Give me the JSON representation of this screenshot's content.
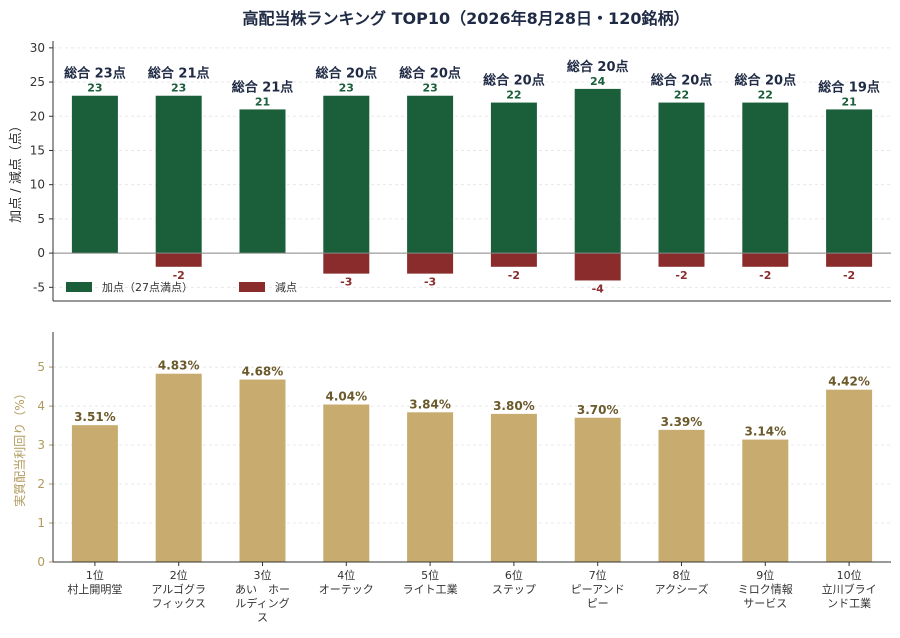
{
  "chart_data": [
    {
      "type": "bar",
      "title": "高配当株ランキング TOP10（2026年8月28日・120銘柄）",
      "ylabel": "加点 / 減点（点）",
      "ylim": [
        -7,
        31
      ],
      "yticks": [
        -5,
        0,
        5,
        10,
        15,
        20,
        25,
        30
      ],
      "grid": true,
      "legend_position": "bottom-left",
      "categories": [
        "1位\n村上開明堂",
        "2位\nアルゴグラ\nフィックス",
        "3位\nあい　ホー\nルディング\nス",
        "4位\nオーテック",
        "5位\nライト工業",
        "6位\nステップ",
        "7位\nピーアンド\nピー",
        "8位\nアクシーズ",
        "9位\nミロク情報\nサービス",
        "10位\n立川ブライ\nンド工業"
      ],
      "series": [
        {
          "name": "加点（27点満点）",
          "color": "#1a5e3a",
          "values": [
            23,
            23,
            21,
            23,
            23,
            22,
            24,
            22,
            22,
            21
          ]
        },
        {
          "name": "減点",
          "color": "#8b2c2c",
          "values": [
            0,
            -2,
            0,
            -3,
            -3,
            -2,
            -4,
            -2,
            -2,
            -2
          ]
        }
      ],
      "plus_labels": [
        "23",
        "23",
        "21",
        "23",
        "23",
        "22",
        "24",
        "22",
        "22",
        "21"
      ],
      "minus_labels": [
        "",
        "-2",
        "",
        "-3",
        "-3",
        "-2",
        "-4",
        "-2",
        "-2",
        "-2"
      ],
      "total_labels": [
        "総合 23点",
        "総合 21点",
        "総合 21点",
        "総合 20点",
        "総合 20点",
        "総合 20点",
        "総合 20点",
        "総合 20点",
        "総合 20点",
        "総合 19点"
      ]
    },
    {
      "type": "bar",
      "ylabel": "実質配当利回り（%）",
      "ylim": [
        0,
        5.9
      ],
      "yticks": [
        0,
        1,
        2,
        3,
        4,
        5
      ],
      "grid": true,
      "categories": [
        "1位\n村上開明堂",
        "2位\nアルゴグラ\nフィックス",
        "3位\nあい　ホー\nルディング\nス",
        "4位\nオーテック",
        "5位\nライト工業",
        "6位\nステップ",
        "7位\nピーアンド\nピー",
        "8位\nアクシーズ",
        "9位\nミロク情報\nサービス",
        "10位\n立川ブライ\nンド工業"
      ],
      "series": [
        {
          "color": "#c8ab6e",
          "values": [
            3.51,
            4.83,
            4.68,
            4.04,
            3.84,
            3.8,
            3.7,
            3.39,
            3.14,
            4.42
          ]
        }
      ],
      "value_labels": [
        "3.51%",
        "4.83%",
        "4.68%",
        "4.04%",
        "3.84%",
        "3.80%",
        "3.70%",
        "3.39%",
        "3.14%",
        "4.42%"
      ]
    }
  ]
}
